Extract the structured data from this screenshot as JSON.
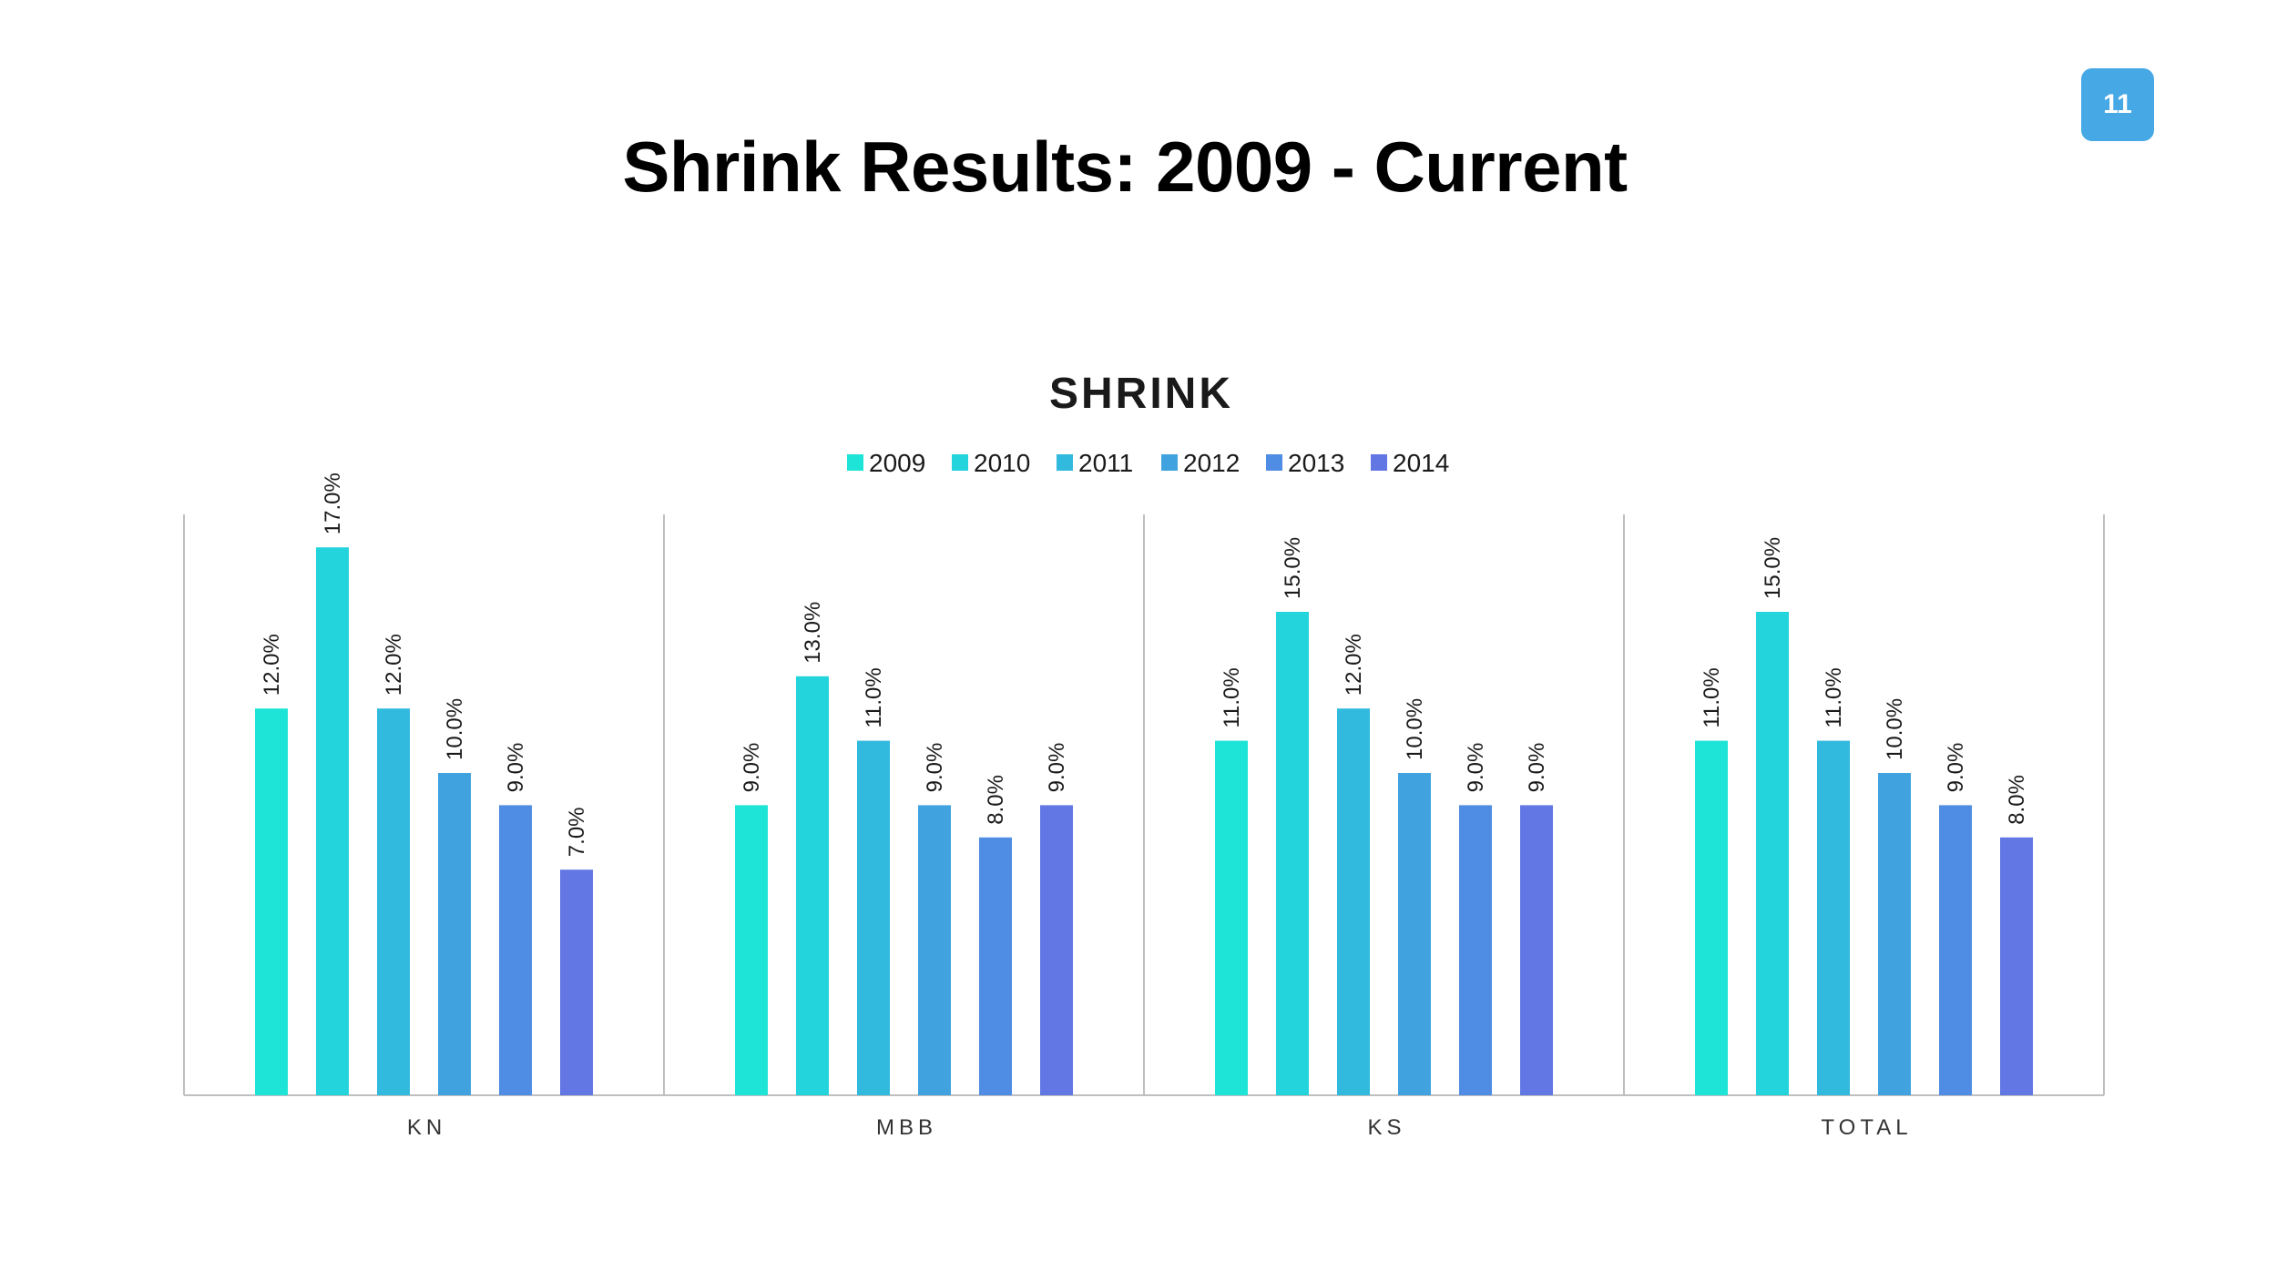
{
  "page_number": "11",
  "slide_title": "Shrink Results: 2009 - Current",
  "colors": {
    "badge": "#46a9e6",
    "axis": "#bfbfbf",
    "series": [
      "#1de4d6",
      "#23d4dc",
      "#31b9de",
      "#40a3e0",
      "#4f8ce3",
      "#6277e4"
    ]
  },
  "chart_data": {
    "type": "bar",
    "title": "SHRINK",
    "categories": [
      "KN",
      "MBB",
      "KS",
      "TOTAL"
    ],
    "series": [
      {
        "name": "2009",
        "values": [
          12.0,
          9.0,
          11.0,
          11.0
        ]
      },
      {
        "name": "2010",
        "values": [
          17.0,
          13.0,
          15.0,
          15.0
        ]
      },
      {
        "name": "2011",
        "values": [
          12.0,
          11.0,
          12.0,
          11.0
        ]
      },
      {
        "name": "2012",
        "values": [
          10.0,
          9.0,
          10.0,
          10.0
        ]
      },
      {
        "name": "2013",
        "values": [
          9.0,
          8.0,
          9.0,
          9.0
        ]
      },
      {
        "name": "2014",
        "values": [
          7.0,
          9.0,
          9.0,
          8.0
        ]
      }
    ],
    "value_suffix": "%",
    "ylim": [
      0,
      18
    ],
    "legend_position": "top",
    "grid": false,
    "category_dividers": true
  }
}
